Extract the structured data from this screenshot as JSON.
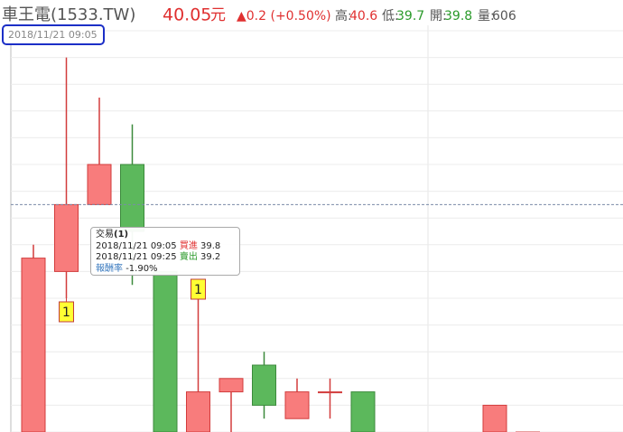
{
  "header": {
    "name": "車王電(1533.TW)",
    "price": "40.05",
    "unit": "元",
    "change": "▲0.2 (+0.50%)",
    "high_label": "高:",
    "high": "40.6",
    "low_label": "低:",
    "low": "39.7",
    "open_label": "開:",
    "open": "39.8",
    "volume_label": "量:",
    "volume": "606",
    "time": "2018/11/21 09:05"
  },
  "tooltip": {
    "title": "交易",
    "title_count": "(1)",
    "rows": [
      [
        "2018/11/21 09:05",
        "買進",
        "39.8"
      ],
      [
        "2018/11/21 09:25",
        "賣出",
        "39.2"
      ]
    ],
    "return_label": "報酬率",
    "return_value": "-1.90%"
  },
  "markers": [
    "1",
    "1"
  ],
  "chart_data": {
    "type": "candlestick",
    "open": [
      39.2,
      39.8,
      40.05,
      40.2,
      39.8,
      39.2,
      39.35,
      39.45,
      39.25,
      39.35,
      39.35,
      null,
      null,
      null,
      39.2,
      39.2
    ],
    "high": [
      39.9,
      40.6,
      40.45,
      40.35,
      39.8,
      39.7,
      39.4,
      39.5,
      39.4,
      39.4,
      39.35,
      null,
      null,
      null,
      39.3,
      39.2
    ],
    "low": [
      39.2,
      39.7,
      40.05,
      39.75,
      39.2,
      39.2,
      39.2,
      39.25,
      39.25,
      39.25,
      39.2,
      null,
      null,
      null,
      39.2,
      39.2
    ],
    "close": [
      39.85,
      40.05,
      40.2,
      39.95,
      39.2,
      39.35,
      39.4,
      39.3,
      39.35,
      39.35,
      39.2,
      null,
      null,
      null,
      39.3,
      39.2
    ],
    "up_color": "#f87c7c",
    "down_color": "#5cb85c",
    "price_line": 40.05,
    "ylim": [
      39.2,
      40.7
    ],
    "yticks": [
      39.2,
      39.3,
      39.4,
      39.5,
      39.6,
      39.7,
      39.8,
      39.9,
      40.0,
      40.1,
      40.2,
      40.3,
      40.4,
      40.5,
      40.6,
      40.7
    ],
    "grid": true,
    "tick_labels": false
  }
}
